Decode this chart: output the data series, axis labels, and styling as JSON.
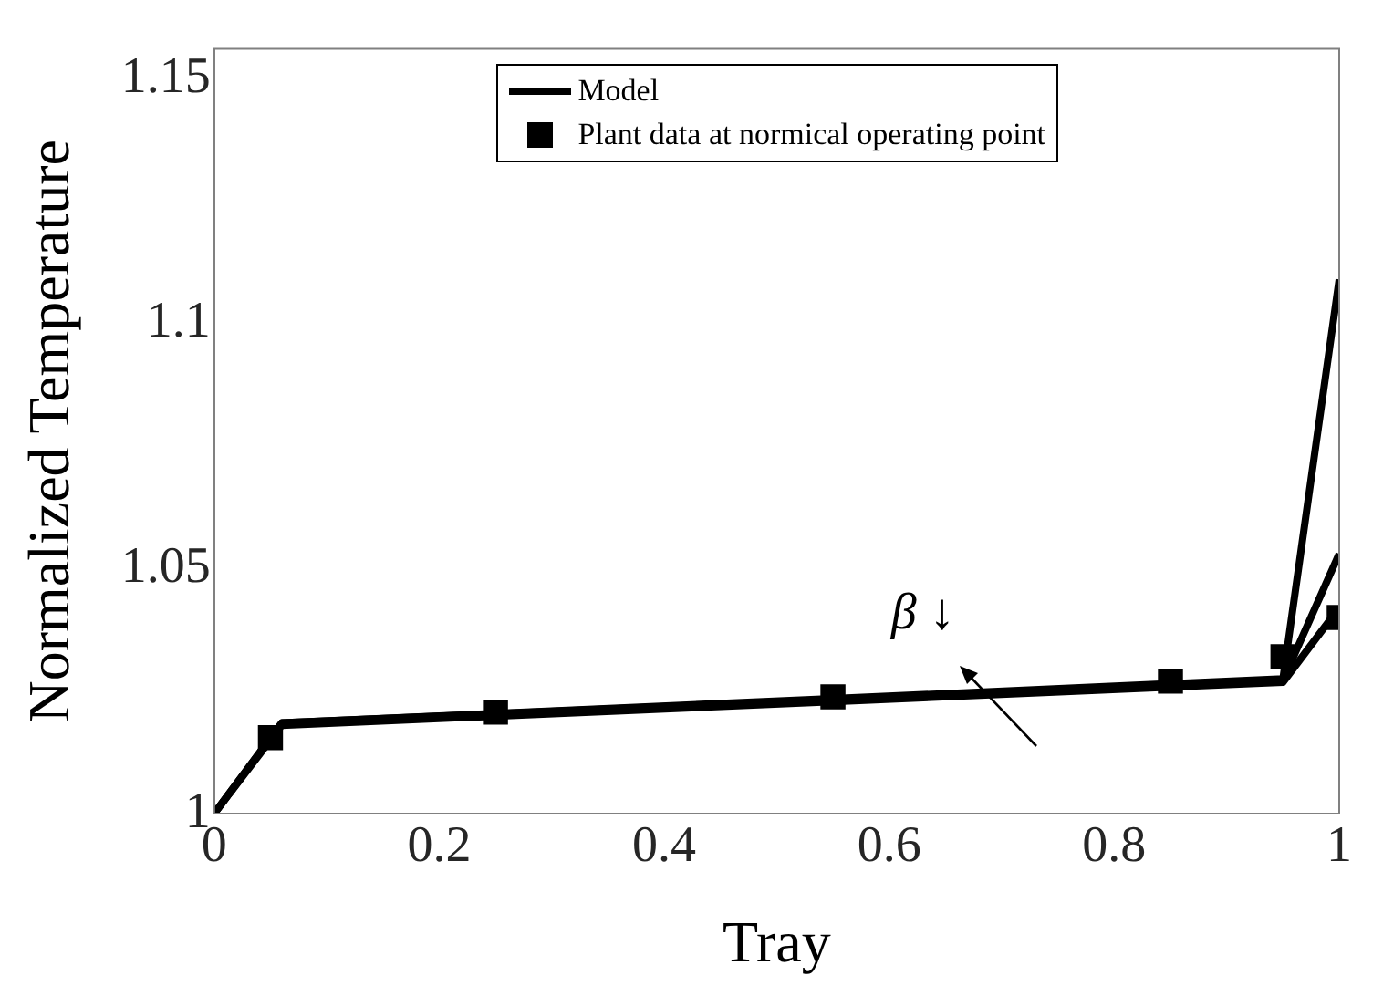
{
  "chart_data": {
    "type": "line",
    "xlabel": "Tray",
    "ylabel": "Normalized Temperature",
    "xlim": [
      0,
      1
    ],
    "xticks": [
      0,
      0.2,
      0.4,
      0.6,
      0.8,
      1
    ],
    "ylim": [
      1,
      1.156
    ],
    "yticks": [
      1,
      1.05,
      1.1,
      1.15
    ],
    "grid": false,
    "legend": "top",
    "line_style": "solid",
    "annotations": [
      "β ↓"
    ],
    "series": [
      {
        "name": "Model",
        "type": "line",
        "marker": "none",
        "color": "#000000",
        "x": [
          0,
          0.06,
          0.95,
          1
        ],
        "values": [
          1,
          1.0185,
          1.0275,
          1.109
        ]
      },
      {
        "type": "line",
        "marker": "none",
        "color": "#000000",
        "x": [
          0,
          0.06,
          0.95,
          1
        ],
        "values": [
          1,
          1.0185,
          1.0272,
          1.053
        ]
      },
      {
        "type": "line",
        "marker": "none",
        "color": "#000000",
        "x": [
          0,
          0.06,
          0.95,
          1
        ],
        "values": [
          1,
          1.018,
          1.0268,
          1.042
        ]
      },
      {
        "name": "Plant data at normical operating point",
        "type": "scatter",
        "marker": "square",
        "color": "#000000",
        "x": [
          0.05,
          0.25,
          0.55,
          0.85,
          0.95,
          1
        ],
        "values": [
          1.0155,
          1.0207,
          1.0238,
          1.027,
          1.032,
          1.04
        ]
      }
    ]
  }
}
